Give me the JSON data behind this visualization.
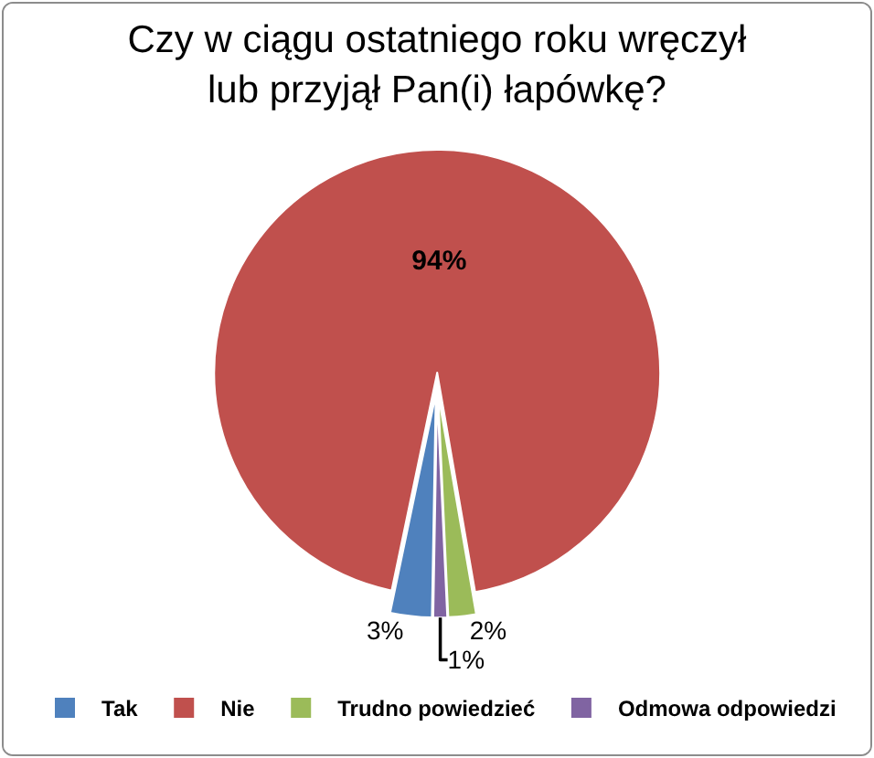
{
  "chart_data": {
    "type": "pie",
    "title": "Czy w ciągu ostatniego roku wręczył\nlub przyjął Pan(i) łapówkę?",
    "categories": [
      "Tak",
      "Nie",
      "Trudno powiedzieć",
      "Odmowa odpowiedzi"
    ],
    "values": [
      3,
      94,
      2,
      1
    ],
    "value_labels": [
      "3%",
      "94%",
      "2%",
      "1%"
    ],
    "colors": [
      "#4f81bd",
      "#c0504d",
      "#9bbb59",
      "#8064a2"
    ],
    "legend": "bottom"
  }
}
